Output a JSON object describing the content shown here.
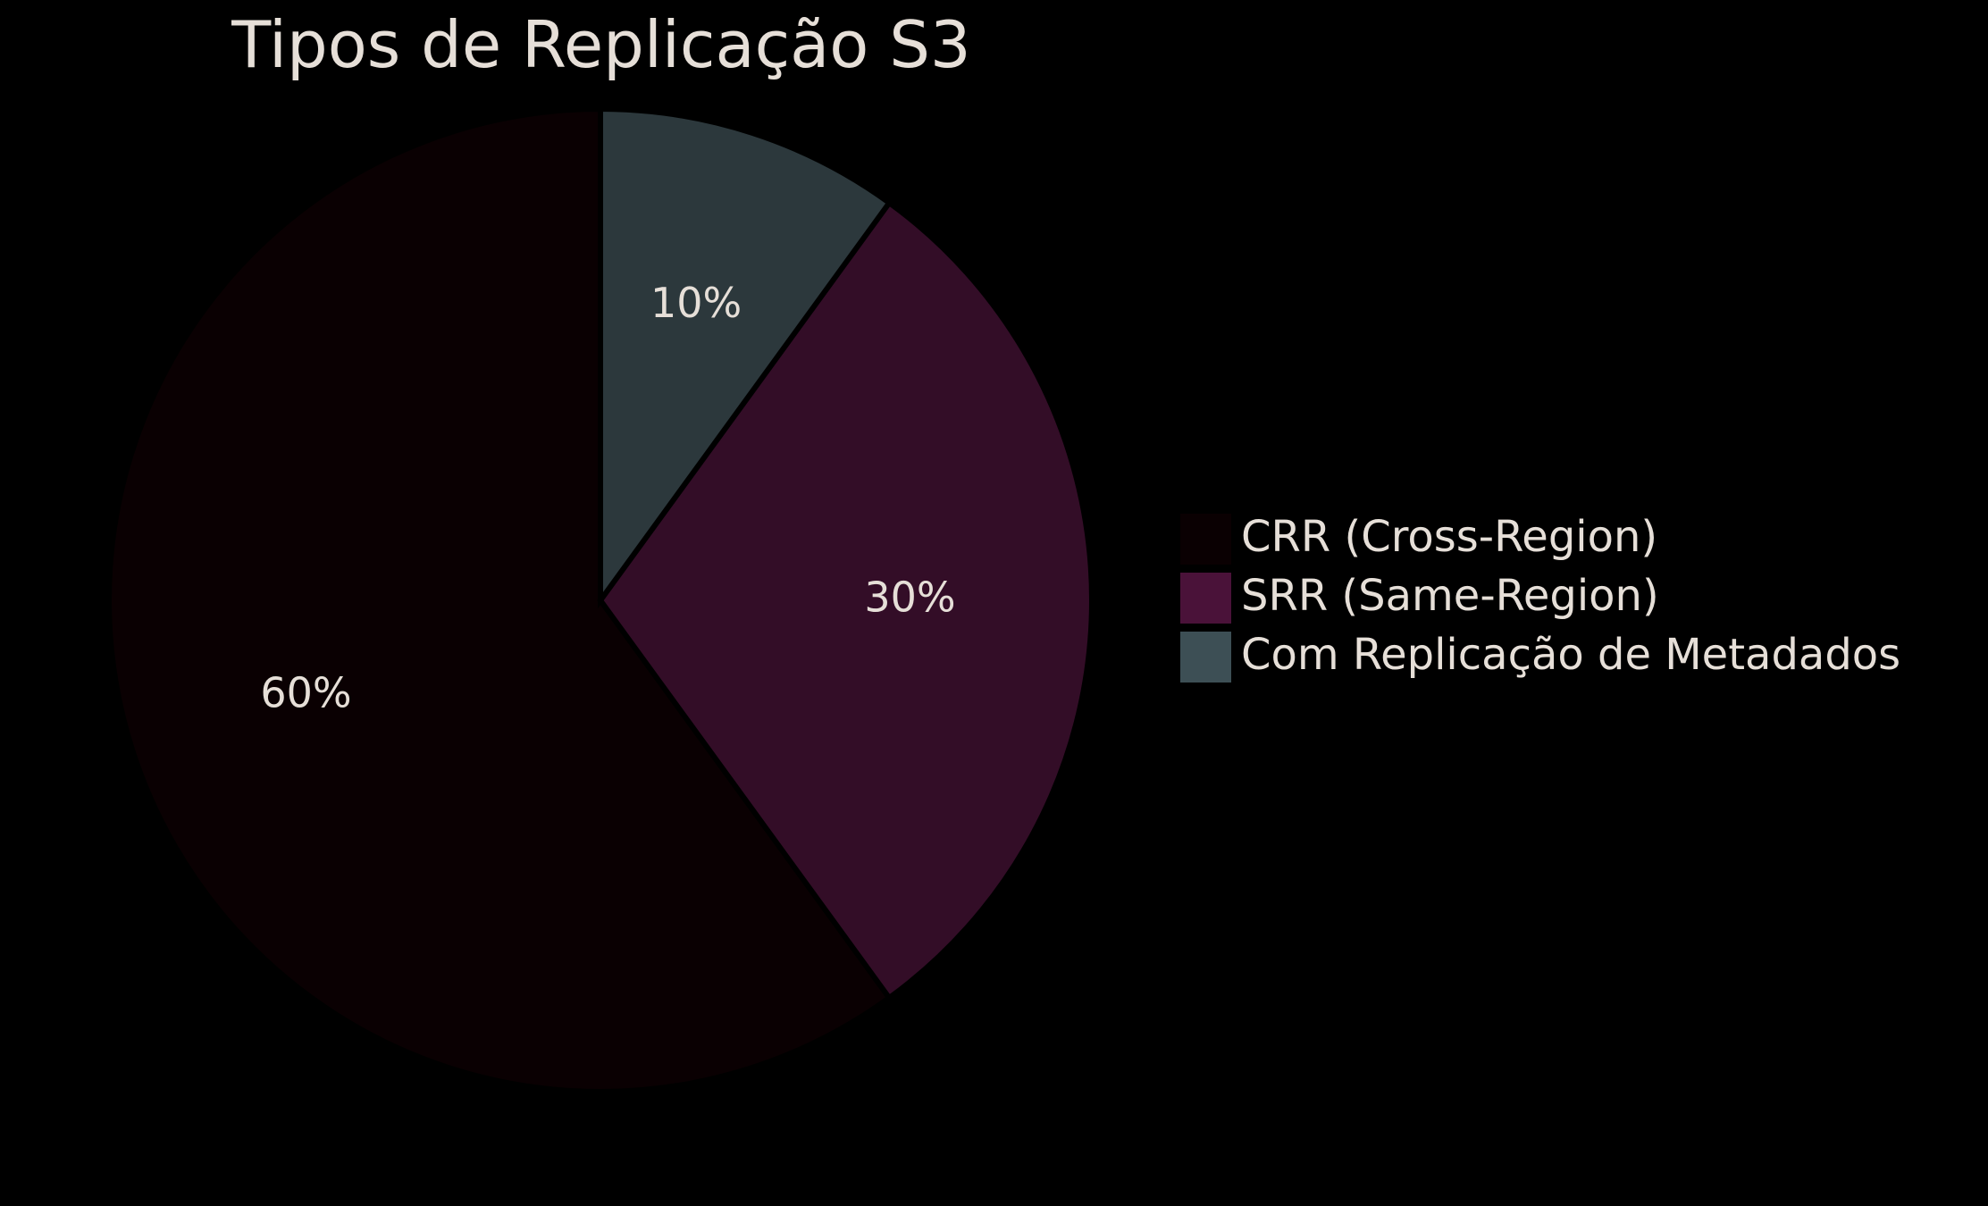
{
  "chart_data": {
    "type": "pie",
    "title": "Tipos de Replicação S3",
    "start_angle_deg": 90,
    "direction": "counterclockwise",
    "legend_position": "right",
    "slices": [
      {
        "label": "CRR (Cross-Region)",
        "value": 60,
        "value_label": "60%",
        "color": "#0a0002"
      },
      {
        "label": "SRR (Same-Region)",
        "value": 30,
        "value_label": "30%",
        "color": "#330d27"
      },
      {
        "label": "Com Replicação de Metadados",
        "value": 10,
        "value_label": "10%",
        "color": "#2c383c"
      }
    ],
    "legend_swatch_colors": [
      "#0a0002",
      "#4a1239",
      "#3d4f55"
    ],
    "background": "#000000",
    "text_color": "#e6dfd8"
  }
}
